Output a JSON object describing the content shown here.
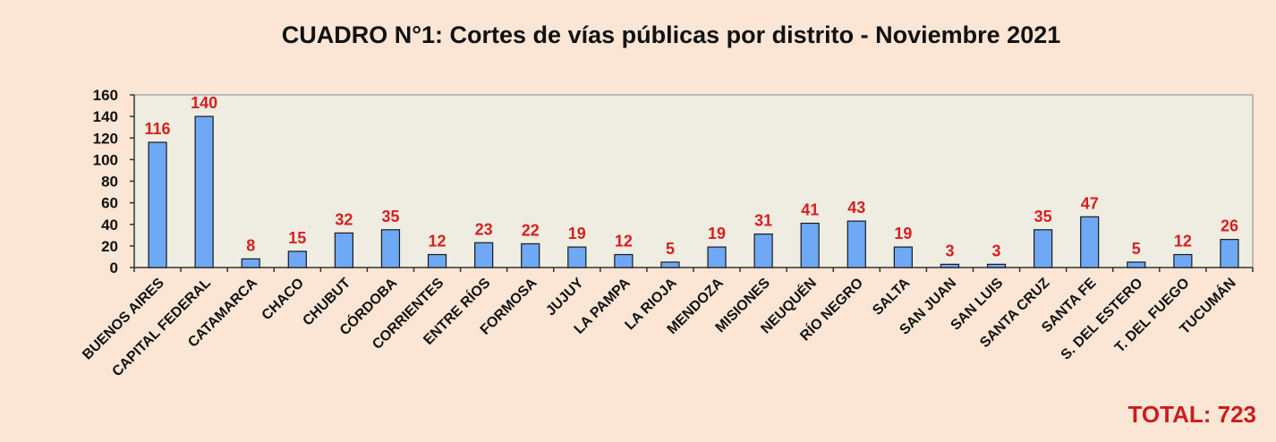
{
  "chart_data": {
    "type": "bar",
    "title": "CUADRO N°1: Cortes de vías públicas por distrito - Noviembre 2021",
    "categories": [
      "BUENOS AIRES",
      "CAPITAL FEDERAL",
      "CATAMARCA",
      "CHACO",
      "CHUBUT",
      "CÓRDOBA",
      "CORRIENTES",
      "ENTRE RÍOS",
      "FORMOSA",
      "JUJUY",
      "LA PAMPA",
      "LA RIOJA",
      "MENDOZA",
      "MISIONES",
      "NEUQUÉN",
      "RÍO NEGRO",
      "SALTA",
      "SAN JUAN",
      "SAN LUIS",
      "SANTA CRUZ",
      "SANTA FE",
      "S. DEL ESTERO",
      "T. DEL FUEGO",
      "TUCUMÁN"
    ],
    "values": [
      116,
      140,
      8,
      15,
      32,
      35,
      12,
      23,
      22,
      19,
      12,
      5,
      19,
      31,
      41,
      43,
      19,
      3,
      3,
      35,
      47,
      5,
      12,
      26
    ],
    "ylim": [
      0,
      160
    ],
    "yticks": [
      0,
      20,
      40,
      60,
      80,
      100,
      120,
      140,
      160
    ],
    "grid": false,
    "legend": "none",
    "xlabel": "",
    "ylabel": "",
    "total_label": "TOTAL: 723",
    "colors": {
      "page_background": "#fbe6d5",
      "plot_background": "#efece1",
      "bar_fill": "#6fa8f4",
      "bar_stroke": "#1a1a1a",
      "data_label": "#d42020",
      "total": "#c81e1e"
    }
  }
}
